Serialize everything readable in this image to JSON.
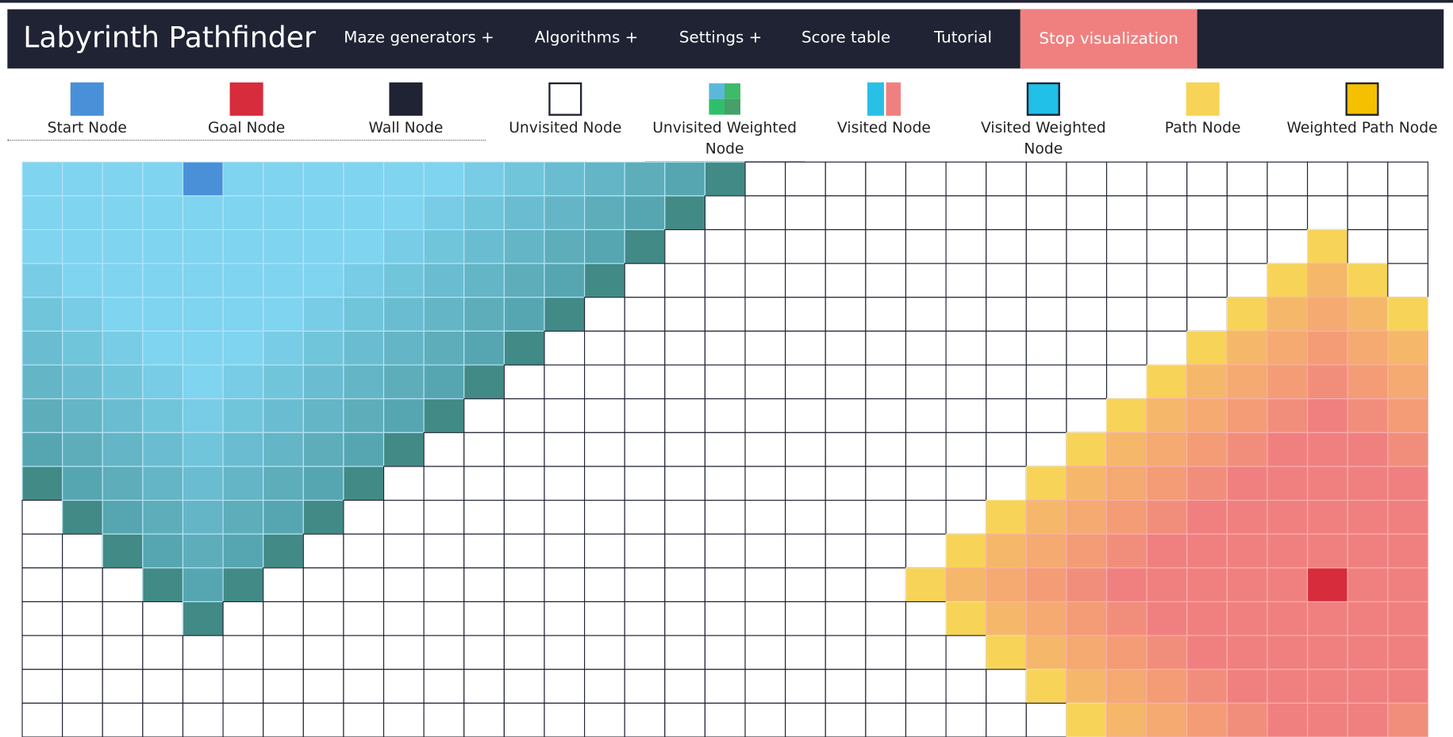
{
  "navbar": {
    "title": "Labyrinth Pathfinder",
    "items": [
      "Maze generators +",
      "Algorithms +",
      "Settings +",
      "Score table",
      "Tutorial"
    ],
    "button": "Stop visualization"
  },
  "legend": {
    "items": [
      "Start Node",
      "Goal Node",
      "Wall Node",
      "Unvisited Node",
      "Unvisited Weighted Node",
      "Visited Node",
      "Visited Weighted Node",
      "Path Node",
      "Weighted Path Node"
    ]
  }
}
